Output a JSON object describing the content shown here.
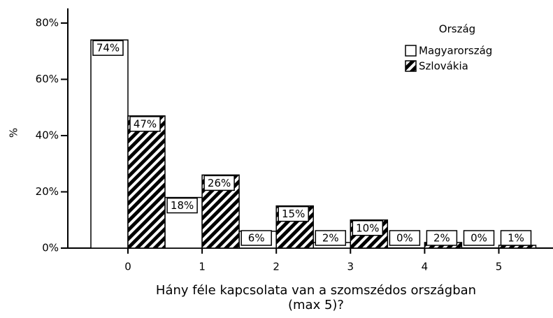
{
  "chart_data": {
    "type": "bar",
    "xlabel": [
      "Hány féle kapcsolata van a szomszédos országban",
      "(max 5)?"
    ],
    "ylabel": "%",
    "categories": [
      "0",
      "1",
      "2",
      "3",
      "4",
      "5"
    ],
    "series": [
      {
        "name": "Magyarország",
        "color": "#ffffff",
        "pattern": "solid",
        "values": [
          74,
          18,
          6,
          2,
          0,
          0
        ],
        "value_labels": [
          "74%",
          "18%",
          "6%",
          "2%",
          "0%",
          "0%"
        ]
      },
      {
        "name": "Szlovákia",
        "color": "#000000",
        "pattern": "hatched",
        "values": [
          47,
          26,
          15,
          10,
          2,
          1
        ],
        "value_labels": [
          "47%",
          "26%",
          "15%",
          "10%",
          "2%",
          "1%"
        ]
      }
    ],
    "legend_title": "Ország",
    "legend": "upper right",
    "ylim": [
      0,
      85
    ],
    "yticks": [
      {
        "value": 0,
        "label": "0%"
      },
      {
        "value": 20,
        "label": "20%"
      },
      {
        "value": 40,
        "label": "40%"
      },
      {
        "value": 60,
        "label": "60%"
      },
      {
        "value": 80,
        "label": "80%"
      }
    ],
    "grid": false
  }
}
